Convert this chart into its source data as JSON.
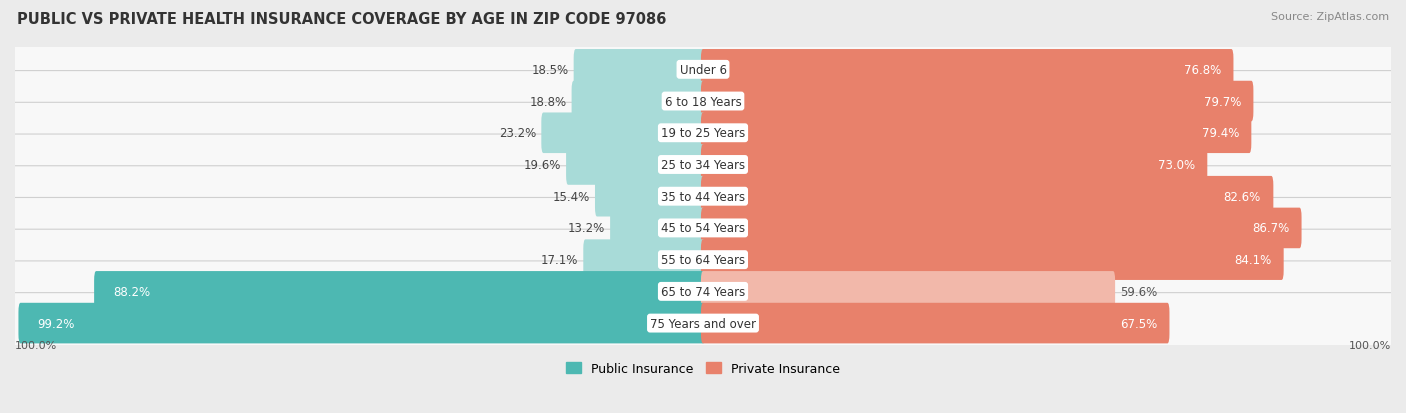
{
  "title": "PUBLIC VS PRIVATE HEALTH INSURANCE COVERAGE BY AGE IN ZIP CODE 97086",
  "source": "Source: ZipAtlas.com",
  "categories": [
    "Under 6",
    "6 to 18 Years",
    "19 to 25 Years",
    "25 to 34 Years",
    "35 to 44 Years",
    "45 to 54 Years",
    "55 to 64 Years",
    "65 to 74 Years",
    "75 Years and over"
  ],
  "public_values": [
    18.5,
    18.8,
    23.2,
    19.6,
    15.4,
    13.2,
    17.1,
    88.2,
    99.2
  ],
  "private_values": [
    76.8,
    79.7,
    79.4,
    73.0,
    82.6,
    86.7,
    84.1,
    59.6,
    67.5
  ],
  "public_color": "#4db8b2",
  "private_color": "#e8816b",
  "public_color_light": "#a8dbd8",
  "private_color_light": "#f2b8aa",
  "bg_color": "#ebebeb",
  "bar_bg_color": "#f8f8f8",
  "row_border_color": "#d0d0d0",
  "title_color": "#333333",
  "label_fontsize": 8.5,
  "title_fontsize": 10.5,
  "source_fontsize": 8,
  "legend_fontsize": 9,
  "max_val": 100.0,
  "pub_threshold": 50,
  "priv_threshold": 65
}
